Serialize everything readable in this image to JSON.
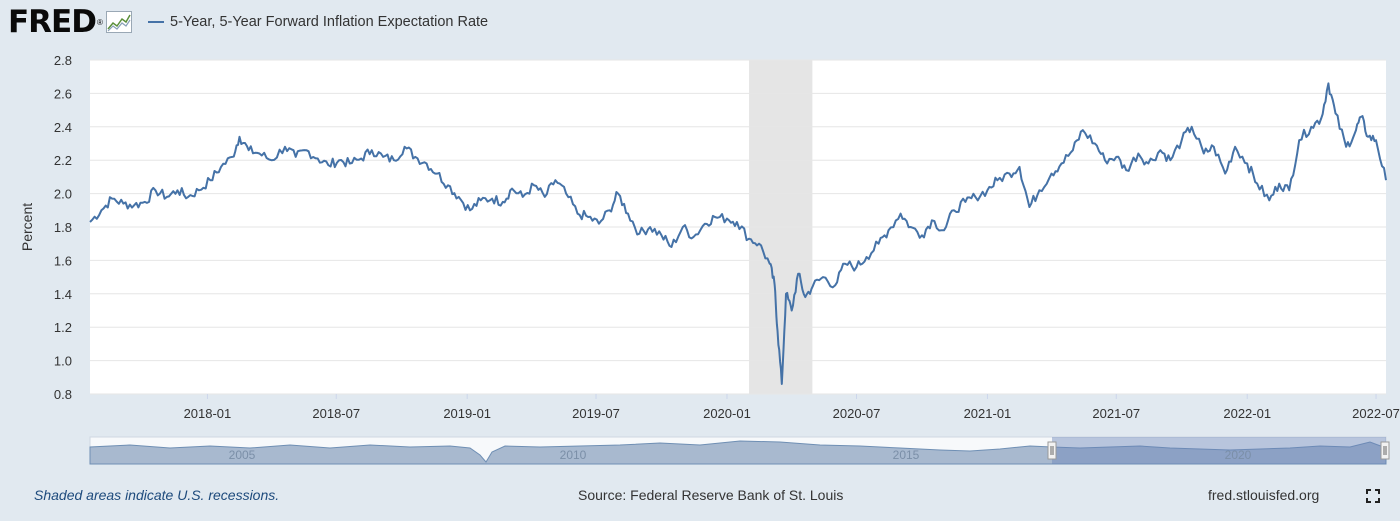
{
  "header": {
    "logo": "FRED",
    "legend_label": "5-Year, 5-Year Forward Inflation Expectation Rate"
  },
  "footer": {
    "recession_note": "Shaded areas indicate U.S. recessions.",
    "source": "Source: Federal Reserve Bank of St. Louis",
    "site": "fred.stlouisfed.org"
  },
  "colors": {
    "series": "#4572a7",
    "recession": "#e5e5e5",
    "background": "#e1e9f0",
    "plot": "#ffffff"
  },
  "icons": {
    "logo_graph": "line-graph-icon",
    "fullscreen": "fullscreen-icon"
  },
  "chart_data": {
    "type": "line",
    "title": "",
    "xlabel": "",
    "ylabel": "Percent",
    "ylim": [
      0.8,
      2.8
    ],
    "xlim": [
      "2017-07-20",
      "2022-07-15"
    ],
    "yticks": [
      "0.8",
      "1.0",
      "1.2",
      "1.4",
      "1.6",
      "1.8",
      "2.0",
      "2.2",
      "2.4",
      "2.6",
      "2.8"
    ],
    "xticks": [
      {
        "date": "2018-01-01",
        "label": "2018-01"
      },
      {
        "date": "2018-07-01",
        "label": "2018-07"
      },
      {
        "date": "2019-01-01",
        "label": "2019-01"
      },
      {
        "date": "2019-07-01",
        "label": "2019-07"
      },
      {
        "date": "2020-01-01",
        "label": "2020-01"
      },
      {
        "date": "2020-07-01",
        "label": "2020-07"
      },
      {
        "date": "2021-01-01",
        "label": "2021-01"
      },
      {
        "date": "2021-07-01",
        "label": "2021-07"
      },
      {
        "date": "2022-01-01",
        "label": "2022-01"
      },
      {
        "date": "2022-07-01",
        "label": "2022-07"
      }
    ],
    "grid": true,
    "legend": "top-left",
    "recessions": [
      {
        "start": "2020-02-01",
        "end": "2020-04-30"
      }
    ],
    "series": [
      {
        "name": "5-Year, 5-Year Forward Inflation Expectation Rate",
        "points": [
          [
            "2017-07-20",
            1.83
          ],
          [
            "2017-08-05",
            1.9
          ],
          [
            "2017-08-20",
            1.97
          ],
          [
            "2017-09-05",
            1.94
          ],
          [
            "2017-09-20",
            1.93
          ],
          [
            "2017-10-05",
            1.95
          ],
          [
            "2017-10-20",
            2.02
          ],
          [
            "2017-11-05",
            1.98
          ],
          [
            "2017-11-20",
            2.02
          ],
          [
            "2017-12-05",
            1.98
          ],
          [
            "2017-12-20",
            2.02
          ],
          [
            "2018-01-05",
            2.08
          ],
          [
            "2018-01-20",
            2.16
          ],
          [
            "2018-02-05",
            2.22
          ],
          [
            "2018-02-15",
            2.34
          ],
          [
            "2018-02-28",
            2.26
          ],
          [
            "2018-03-15",
            2.24
          ],
          [
            "2018-04-01",
            2.2
          ],
          [
            "2018-04-20",
            2.28
          ],
          [
            "2018-05-05",
            2.22
          ],
          [
            "2018-05-20",
            2.26
          ],
          [
            "2018-06-05",
            2.21
          ],
          [
            "2018-06-20",
            2.17
          ],
          [
            "2018-07-05",
            2.2
          ],
          [
            "2018-07-20",
            2.18
          ],
          [
            "2018-08-05",
            2.21
          ],
          [
            "2018-08-20",
            2.26
          ],
          [
            "2018-09-05",
            2.22
          ],
          [
            "2018-09-20",
            2.2
          ],
          [
            "2018-10-05",
            2.28
          ],
          [
            "2018-10-20",
            2.22
          ],
          [
            "2018-11-05",
            2.18
          ],
          [
            "2018-11-20",
            2.12
          ],
          [
            "2018-12-05",
            2.05
          ],
          [
            "2018-12-20",
            1.98
          ],
          [
            "2019-01-05",
            1.9
          ],
          [
            "2019-01-20",
            1.96
          ],
          [
            "2019-02-05",
            1.97
          ],
          [
            "2019-02-20",
            1.95
          ],
          [
            "2019-03-05",
            2.03
          ],
          [
            "2019-03-20",
            1.98
          ],
          [
            "2019-04-05",
            2.05
          ],
          [
            "2019-04-20",
            1.98
          ],
          [
            "2019-05-05",
            2.08
          ],
          [
            "2019-05-20",
            2.0
          ],
          [
            "2019-06-05",
            1.88
          ],
          [
            "2019-06-20",
            1.86
          ],
          [
            "2019-07-05",
            1.82
          ],
          [
            "2019-07-20",
            1.9
          ],
          [
            "2019-08-01",
            2.0
          ],
          [
            "2019-08-15",
            1.88
          ],
          [
            "2019-08-31",
            1.76
          ],
          [
            "2019-09-15",
            1.8
          ],
          [
            "2019-10-01",
            1.75
          ],
          [
            "2019-10-15",
            1.68
          ],
          [
            "2019-10-31",
            1.8
          ],
          [
            "2019-11-15",
            1.74
          ],
          [
            "2019-12-01",
            1.82
          ],
          [
            "2019-12-15",
            1.86
          ],
          [
            "2020-01-01",
            1.85
          ],
          [
            "2020-01-15",
            1.83
          ],
          [
            "2020-02-01",
            1.73
          ],
          [
            "2020-02-15",
            1.7
          ],
          [
            "2020-03-01",
            1.58
          ],
          [
            "2020-03-08",
            1.45
          ],
          [
            "2020-03-12",
            1.18
          ],
          [
            "2020-03-18",
            0.86
          ],
          [
            "2020-03-24",
            1.4
          ],
          [
            "2020-04-01",
            1.3
          ],
          [
            "2020-04-10",
            1.52
          ],
          [
            "2020-04-20",
            1.38
          ],
          [
            "2020-05-01",
            1.45
          ],
          [
            "2020-05-15",
            1.5
          ],
          [
            "2020-06-01",
            1.45
          ],
          [
            "2020-06-15",
            1.58
          ],
          [
            "2020-07-01",
            1.56
          ],
          [
            "2020-07-15",
            1.62
          ],
          [
            "2020-08-01",
            1.7
          ],
          [
            "2020-08-15",
            1.78
          ],
          [
            "2020-09-01",
            1.88
          ],
          [
            "2020-09-15",
            1.8
          ],
          [
            "2020-10-01",
            1.75
          ],
          [
            "2020-10-15",
            1.84
          ],
          [
            "2020-11-01",
            1.78
          ],
          [
            "2020-11-15",
            1.9
          ],
          [
            "2020-12-01",
            1.95
          ],
          [
            "2020-12-15",
            1.98
          ],
          [
            "2021-01-01",
            2.02
          ],
          [
            "2021-01-15",
            2.08
          ],
          [
            "2021-02-01",
            2.12
          ],
          [
            "2021-02-15",
            2.16
          ],
          [
            "2021-03-01",
            1.92
          ],
          [
            "2021-03-15",
            2.02
          ],
          [
            "2021-04-01",
            2.12
          ],
          [
            "2021-04-15",
            2.18
          ],
          [
            "2021-05-01",
            2.26
          ],
          [
            "2021-05-15",
            2.38
          ],
          [
            "2021-06-01",
            2.3
          ],
          [
            "2021-06-15",
            2.2
          ],
          [
            "2021-07-01",
            2.22
          ],
          [
            "2021-07-15",
            2.14
          ],
          [
            "2021-08-01",
            2.24
          ],
          [
            "2021-08-15",
            2.18
          ],
          [
            "2021-09-01",
            2.26
          ],
          [
            "2021-09-15",
            2.2
          ],
          [
            "2021-10-01",
            2.32
          ],
          [
            "2021-10-15",
            2.4
          ],
          [
            "2021-11-01",
            2.24
          ],
          [
            "2021-11-15",
            2.28
          ],
          [
            "2021-12-01",
            2.12
          ],
          [
            "2021-12-15",
            2.28
          ],
          [
            "2022-01-01",
            2.18
          ],
          [
            "2022-01-15",
            2.06
          ],
          [
            "2022-02-01",
            1.96
          ],
          [
            "2022-02-15",
            2.06
          ],
          [
            "2022-03-01",
            2.02
          ],
          [
            "2022-03-15",
            2.32
          ],
          [
            "2022-04-01",
            2.4
          ],
          [
            "2022-04-15",
            2.45
          ],
          [
            "2022-04-25",
            2.66
          ],
          [
            "2022-05-05",
            2.48
          ],
          [
            "2022-05-20",
            2.28
          ],
          [
            "2022-06-01",
            2.36
          ],
          [
            "2022-06-10",
            2.46
          ],
          [
            "2022-06-20",
            2.34
          ],
          [
            "2022-07-01",
            2.32
          ],
          [
            "2022-07-15",
            2.08
          ]
        ]
      }
    ],
    "navigator": {
      "tick_labels": [
        "2005",
        "2010",
        "2015",
        "2020"
      ]
    }
  }
}
